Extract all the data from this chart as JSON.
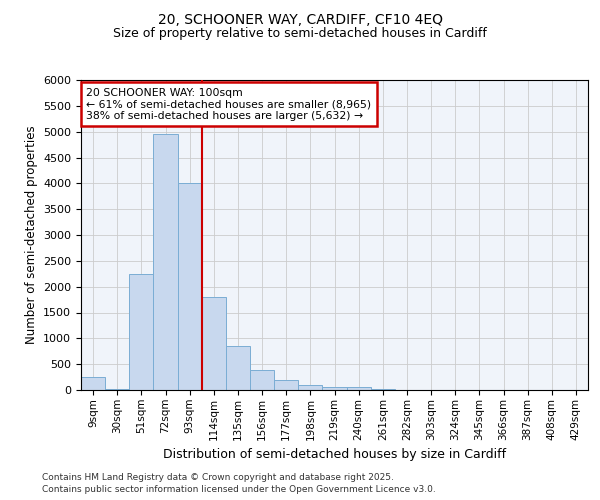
{
  "title_line1": "20, SCHOONER WAY, CARDIFF, CF10 4EQ",
  "title_line2": "Size of property relative to semi-detached houses in Cardiff",
  "xlabel": "Distribution of semi-detached houses by size in Cardiff",
  "ylabel": "Number of semi-detached properties",
  "annotation_title": "20 SCHOONER WAY: 100sqm",
  "annotation_line1": "← 61% of semi-detached houses are smaller (8,965)",
  "annotation_line2": "38% of semi-detached houses are larger (5,632) →",
  "footer_line1": "Contains HM Land Registry data © Crown copyright and database right 2025.",
  "footer_line2": "Contains public sector information licensed under the Open Government Licence v3.0.",
  "bar_labels": [
    "9sqm",
    "30sqm",
    "51sqm",
    "72sqm",
    "93sqm",
    "114sqm",
    "135sqm",
    "156sqm",
    "177sqm",
    "198sqm",
    "219sqm",
    "240sqm",
    "261sqm",
    "282sqm",
    "303sqm",
    "324sqm",
    "345sqm",
    "366sqm",
    "387sqm",
    "408sqm",
    "429sqm"
  ],
  "bar_values": [
    250,
    10,
    2250,
    4950,
    4000,
    1800,
    850,
    380,
    200,
    100,
    60,
    50,
    10,
    5,
    3,
    2,
    1,
    1,
    1,
    1,
    1
  ],
  "bar_color": "#c8d8ee",
  "bar_edge_color": "#7aadd4",
  "vline_color": "#cc0000",
  "annotation_box_color": "#ffffff",
  "annotation_box_edge": "#cc0000",
  "grid_color": "#cccccc",
  "bg_color": "#f0f4fa",
  "fig_bg_color": "#ffffff",
  "ylim": [
    0,
    6000
  ],
  "yticks": [
    0,
    500,
    1000,
    1500,
    2000,
    2500,
    3000,
    3500,
    4000,
    4500,
    5000,
    5500,
    6000
  ],
  "vline_bar_index": 4,
  "title1_fontsize": 10,
  "title2_fontsize": 9
}
